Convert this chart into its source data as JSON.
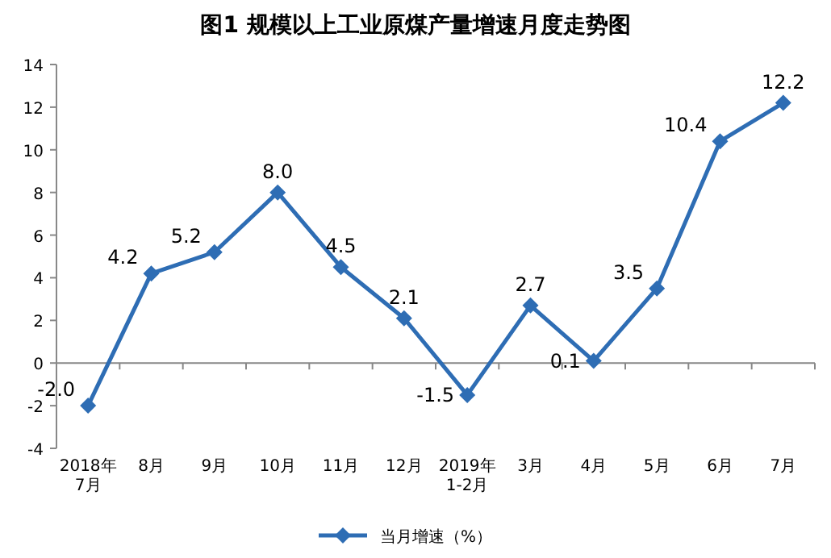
{
  "chart_data": {
    "type": "line",
    "title": "图1  规模以上工业原煤产量增速月度走势图",
    "categories": [
      "2018年\n7月",
      "8月",
      "9月",
      "10月",
      "11月",
      "12月",
      "2019年\n1-2月",
      "3月",
      "4月",
      "5月",
      "6月",
      "7月"
    ],
    "series": [
      {
        "name": "当月增速（%）",
        "color": "#2e6db4",
        "values": [
          -2.0,
          4.2,
          5.2,
          8.0,
          4.5,
          2.1,
          -1.5,
          2.7,
          0.1,
          3.5,
          10.4,
          12.2
        ],
        "value_labels": [
          "-2.0",
          "4.2",
          "5.2",
          "8.0",
          "4.5",
          "2.1",
          "-1.5",
          "2.7",
          "0.1",
          "3.5",
          "10.4",
          "12.2"
        ]
      }
    ],
    "ylim": [
      -4,
      14
    ],
    "yticks": [
      -4,
      -2,
      0,
      2,
      4,
      6,
      8,
      10,
      12,
      14
    ],
    "legend": "bottom",
    "marker": "diamond",
    "line_style": "solid"
  }
}
